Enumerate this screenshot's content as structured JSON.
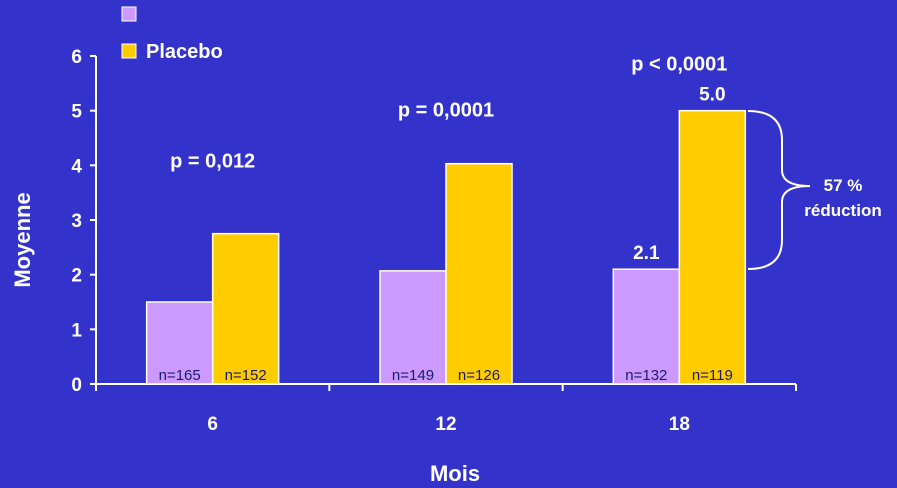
{
  "chart_data": {
    "type": "bar",
    "title": "",
    "xlabel": "Mois",
    "ylabel": "Moyenne",
    "ylim": [
      0,
      6
    ],
    "yticks": [
      "0",
      "1",
      "2",
      "3",
      "4",
      "5",
      "6"
    ],
    "categories": [
      "6",
      "12",
      "18"
    ],
    "legend_position": "top-left",
    "series": [
      {
        "name": "",
        "color": "#CC99FF",
        "values": [
          1.5,
          2.07,
          2.1
        ],
        "n_labels": [
          "n=165",
          "n=149",
          "n=132"
        ],
        "value_labels": [
          "",
          "",
          "2.1"
        ]
      },
      {
        "name": "Placebo",
        "color": "#FFCC00",
        "values": [
          2.75,
          4.03,
          5.0
        ],
        "n_labels": [
          "n=152",
          "n=126",
          "n=119"
        ],
        "value_labels": [
          "",
          "",
          "5.0"
        ]
      }
    ],
    "p_values": [
      "p = 0,012",
      "p = 0,0001",
      "p < 0,0001"
    ],
    "annotation": {
      "line1": "57 %",
      "line2": "réduction"
    }
  },
  "colors": {
    "background": "#3333CC",
    "axis": "#FFFFFF",
    "treatment": "#CC99FF",
    "placebo": "#FFCC00"
  }
}
